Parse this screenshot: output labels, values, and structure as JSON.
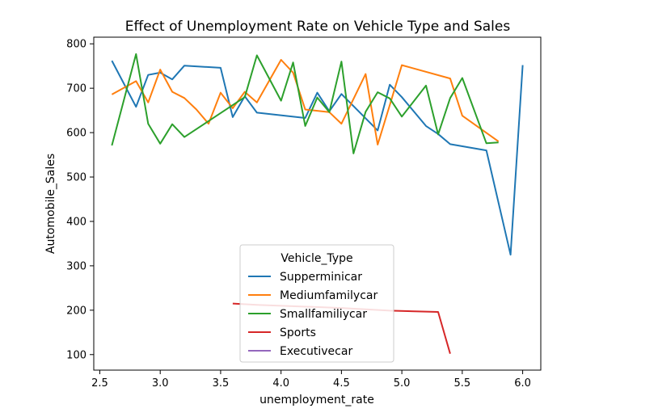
{
  "chart_data": {
    "type": "line",
    "title": "Effect of Unemployment Rate on Vehicle Type and Sales",
    "xlabel": "unemployment_rate",
    "ylabel": "Automobile_Sales",
    "xlim": [
      2.45,
      6.15
    ],
    "ylim": [
      65,
      815
    ],
    "xticks": [
      2.5,
      3.0,
      3.5,
      4.0,
      4.5,
      5.0,
      5.5,
      6.0
    ],
    "xtick_labels": [
      "2.5",
      "3.0",
      "3.5",
      "4.0",
      "4.5",
      "5.0",
      "5.5",
      "6.0"
    ],
    "yticks": [
      100,
      200,
      300,
      400,
      500,
      600,
      700,
      800
    ],
    "ytick_labels": [
      "100",
      "200",
      "300",
      "400",
      "500",
      "600",
      "700",
      "800"
    ],
    "grid": false,
    "legend": {
      "title": "Vehicle_Type",
      "placement": "lower-center"
    },
    "series": [
      {
        "name": "Supperminicar",
        "color": "#1f77b4",
        "x": [
          2.6,
          2.8,
          2.9,
          3.0,
          3.1,
          3.2,
          3.5,
          3.6,
          3.7,
          3.8,
          4.2,
          4.3,
          4.4,
          4.5,
          4.8,
          4.9,
          5.0,
          5.2,
          5.3,
          5.4,
          5.7,
          5.9,
          6.0
        ],
        "y": [
          762,
          658,
          730,
          735,
          720,
          751,
          746,
          635,
          682,
          645,
          633,
          690,
          648,
          687,
          605,
          708,
          680,
          615,
          597,
          574,
          560,
          325,
          752
        ]
      },
      {
        "name": "Mediumfamilycar",
        "color": "#ff7f0e",
        "x": [
          2.6,
          2.8,
          2.9,
          3.0,
          3.1,
          3.2,
          3.3,
          3.4,
          3.5,
          3.6,
          3.7,
          3.8,
          4.0,
          4.1,
          4.2,
          4.4,
          4.5,
          4.7,
          4.8,
          4.9,
          5.0,
          5.4,
          5.5,
          5.8
        ],
        "y": [
          686,
          716,
          668,
          742,
          692,
          678,
          652,
          620,
          690,
          655,
          692,
          668,
          764,
          735,
          652,
          646,
          620,
          732,
          573,
          662,
          752,
          722,
          638,
          580
        ]
      },
      {
        "name": "Smallfamiliycar",
        "color": "#2ca02c",
        "x": [
          2.6,
          2.8,
          2.9,
          3.0,
          3.1,
          3.2,
          3.5,
          3.7,
          3.8,
          4.0,
          4.1,
          4.2,
          4.3,
          4.4,
          4.5,
          4.6,
          4.7,
          4.8,
          4.9,
          5.0,
          5.2,
          5.3,
          5.4,
          5.5,
          5.7,
          5.8
        ],
        "y": [
          571,
          777,
          620,
          575,
          619,
          590,
          644,
          680,
          774,
          672,
          758,
          615,
          679,
          646,
          760,
          553,
          647,
          691,
          677,
          636,
          706,
          596,
          678,
          723,
          576,
          578
        ]
      },
      {
        "name": "Sports",
        "color": "#d62728",
        "x": [
          3.6,
          3.8,
          4.5,
          4.9,
          5.3,
          5.4
        ],
        "y": [
          215,
          212,
          205,
          199,
          196,
          102
        ]
      },
      {
        "name": "Executivecar",
        "color": "#9467bd",
        "x": [],
        "y": []
      }
    ]
  }
}
